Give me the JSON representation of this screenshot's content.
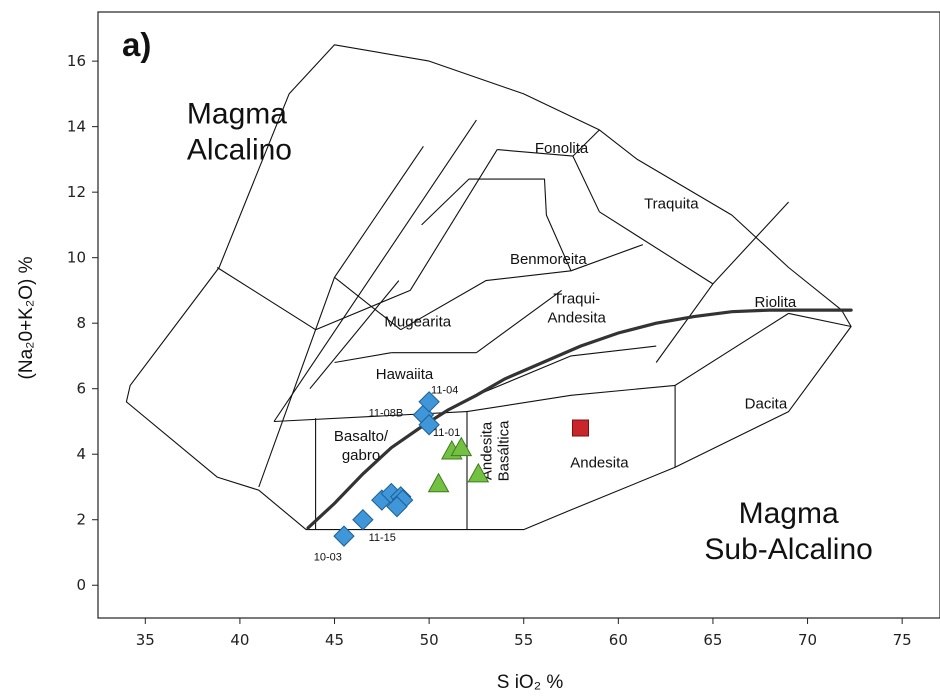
{
  "panel_label": "a)",
  "chart_data": {
    "type": "scatter",
    "xlabel": "S iO₂ %",
    "ylabel": "(Na₂0+K₂O) %",
    "xlim": [
      32.5,
      77
    ],
    "ylim": [
      -1,
      17.5
    ],
    "xticks": [
      35,
      40,
      45,
      50,
      55,
      60,
      65,
      70,
      75
    ],
    "yticks": [
      0,
      2,
      4,
      6,
      8,
      10,
      12,
      14,
      16
    ],
    "grid": false,
    "colors": {
      "diamond": "#3f97d9",
      "triangle": "#74c043",
      "square": "#c8262a",
      "line": "#333333",
      "boundary": "#111111"
    },
    "regions": [
      {
        "name": "Magma Alcalino",
        "lines": [
          "Magma",
          "Alcalino"
        ],
        "x": 37.2,
        "y": 14.1,
        "big": true,
        "align": "start"
      },
      {
        "name": "Magma Sub-Alcalino",
        "lines": [
          "Magma",
          "Sub-Alcalino"
        ],
        "x": 69.0,
        "y": 1.9,
        "big": true,
        "align": "middle"
      },
      {
        "name": "Fonolita",
        "lines": [
          "Fonolita"
        ],
        "x": 57.0,
        "y": 13.2,
        "align": "middle"
      },
      {
        "name": "Traquita",
        "lines": [
          "Traquita"
        ],
        "x": 62.8,
        "y": 11.5,
        "align": "middle"
      },
      {
        "name": "Benmoreita",
        "lines": [
          "Benmoreita"
        ],
        "x": 56.3,
        "y": 9.8,
        "align": "middle"
      },
      {
        "name": "Riolita",
        "lines": [
          "Riolita"
        ],
        "x": 68.3,
        "y": 8.5,
        "align": "middle"
      },
      {
        "name": "Traqui-Andesita",
        "lines": [
          "Traqui-",
          "Andesita"
        ],
        "x": 57.8,
        "y": 8.6,
        "align": "middle"
      },
      {
        "name": "Mugearita",
        "lines": [
          "Mugearita"
        ],
        "x": 49.4,
        "y": 7.9,
        "align": "middle"
      },
      {
        "name": "Hawaiita",
        "lines": [
          "Hawaiita"
        ],
        "x": 48.7,
        "y": 6.3,
        "align": "middle"
      },
      {
        "name": "Dacita",
        "lines": [
          "Dacita"
        ],
        "x": 67.8,
        "y": 5.4,
        "align": "middle"
      },
      {
        "name": "Basalto/gabro",
        "lines": [
          "Basalto/",
          "gabro"
        ],
        "x": 46.4,
        "y": 4.4,
        "align": "middle"
      },
      {
        "name": "Andesita",
        "lines": [
          "Andesita"
        ],
        "x": 59.0,
        "y": 3.6,
        "align": "middle"
      }
    ],
    "vertical_region": {
      "name": "Andesita Basáltica",
      "lines": [
        "Andesita",
        "Basáltica"
      ],
      "x": 53.5,
      "y": 4.1
    },
    "boundary_polylines": [
      [
        [
          43.5,
          1.7
        ],
        [
          45,
          1.7
        ],
        [
          49,
          1.7
        ],
        [
          52,
          1.7
        ],
        [
          55,
          1.7
        ],
        [
          57.5,
          2.3
        ],
        [
          63,
          3.6
        ],
        [
          69,
          5.3
        ],
        [
          72.3,
          7.9
        ],
        [
          71.8,
          8.4
        ],
        [
          69,
          9.7
        ],
        [
          66,
          11.3
        ],
        [
          61,
          13.0
        ],
        [
          59,
          13.9
        ],
        [
          55,
          15.0
        ],
        [
          50,
          16.0
        ],
        [
          45,
          16.5
        ],
        [
          42.6,
          15.0
        ],
        [
          38.9,
          9.7
        ],
        [
          34.2,
          6.1
        ],
        [
          34,
          5.6
        ],
        [
          38.8,
          3.3
        ],
        [
          41.0,
          2.9
        ],
        [
          43.5,
          1.7
        ]
      ],
      [
        [
          41,
          3
        ],
        [
          45,
          9.4
        ]
      ],
      [
        [
          38.8,
          9.7
        ],
        [
          44,
          7.8
        ]
      ],
      [
        [
          41.8,
          5.0
        ],
        [
          52.5,
          14.2
        ]
      ],
      [
        [
          44,
          7.8
        ],
        [
          49,
          9.0
        ]
      ],
      [
        [
          45,
          9.4
        ],
        [
          49.7,
          13.4
        ]
      ],
      [
        [
          49,
          9.0
        ],
        [
          53.6,
          13.3
        ]
      ],
      [
        [
          43.7,
          6.0
        ],
        [
          48.4,
          9.3
        ]
      ],
      [
        [
          45,
          9.4
        ],
        [
          48.5,
          7.8
        ]
      ],
      [
        [
          48.5,
          7.8
        ],
        [
          53.0,
          9.3
        ],
        [
          57.5,
          9.6
        ],
        [
          61.3,
          10.4
        ]
      ],
      [
        [
          49.6,
          11.0
        ],
        [
          52.1,
          12.4
        ],
        [
          56.1,
          12.4
        ],
        [
          56.2,
          11.3
        ],
        [
          57.5,
          9.6
        ]
      ],
      [
        [
          53.6,
          13.3
        ],
        [
          57.6,
          13.1
        ],
        [
          59.0,
          11.4
        ]
      ],
      [
        [
          57.6,
          13.1
        ],
        [
          59.0,
          13.9
        ]
      ],
      [
        [
          59.0,
          11.4
        ],
        [
          65,
          9.2
        ]
      ],
      [
        [
          65,
          9.2
        ],
        [
          69,
          11.7
        ]
      ],
      [
        [
          65,
          9.2
        ],
        [
          62,
          6.8
        ]
      ],
      [
        [
          52,
          5.3
        ],
        [
          52,
          1.7
        ]
      ],
      [
        [
          52.5,
          5.8
        ],
        [
          57.5,
          7.0
        ],
        [
          62,
          7.3
        ]
      ],
      [
        [
          52,
          5.3
        ],
        [
          57.5,
          5.8
        ],
        [
          63,
          6.1
        ]
      ],
      [
        [
          63,
          6.1
        ],
        [
          63,
          3.6
        ]
      ],
      [
        [
          63,
          6.1
        ],
        [
          69,
          8.3
        ]
      ],
      [
        [
          69,
          8.3
        ],
        [
          72.3,
          7.9
        ]
      ],
      [
        [
          41.8,
          5.0
        ],
        [
          52,
          5.3
        ]
      ],
      [
        [
          44,
          5.1
        ],
        [
          44,
          1.7
        ]
      ],
      [
        [
          45,
          6.8
        ],
        [
          48,
          7.1
        ]
      ],
      [
        [
          48,
          7.1
        ],
        [
          52.5,
          7.1
        ]
      ],
      [
        [
          52.5,
          7.1
        ],
        [
          57,
          9.0
        ]
      ]
    ],
    "alkaline_line": [
      [
        43.6,
        1.75
      ],
      [
        45,
        2.5
      ],
      [
        46.5,
        3.4
      ],
      [
        48,
        4.2
      ],
      [
        49.5,
        4.8
      ],
      [
        51,
        5.35
      ],
      [
        52.5,
        5.8
      ],
      [
        54,
        6.3
      ],
      [
        56,
        6.8
      ],
      [
        58,
        7.3
      ],
      [
        60,
        7.7
      ],
      [
        62,
        8.0
      ],
      [
        64,
        8.2
      ],
      [
        66,
        8.35
      ],
      [
        68,
        8.4
      ],
      [
        72.3,
        8.4
      ]
    ],
    "series": [
      {
        "marker": "diamond",
        "points": [
          [
            45.5,
            1.5
          ],
          [
            46.5,
            2.0
          ],
          [
            47.5,
            2.6
          ],
          [
            48.0,
            2.8
          ],
          [
            48.5,
            2.7
          ],
          [
            48.6,
            2.6
          ],
          [
            48.3,
            2.4
          ],
          [
            49.7,
            5.2
          ],
          [
            50.0,
            4.9
          ],
          [
            50.0,
            5.6
          ]
        ]
      },
      {
        "marker": "triangle",
        "points": [
          [
            50.5,
            3.1
          ],
          [
            51.2,
            4.1
          ],
          [
            51.7,
            4.2
          ],
          [
            52.6,
            3.4
          ]
        ]
      },
      {
        "marker": "square",
        "points": [
          [
            58.0,
            4.8
          ]
        ]
      }
    ],
    "point_labels": [
      {
        "text": "11-04",
        "x": 50.1,
        "y": 5.85
      },
      {
        "text": "11-08B",
        "x": 46.8,
        "y": 5.15
      },
      {
        "text": "11-01",
        "x": 50.2,
        "y": 4.55
      },
      {
        "text": "11-15",
        "x": 46.8,
        "y": 1.35
      },
      {
        "text": "10-03",
        "x": 43.9,
        "y": 0.75
      }
    ]
  }
}
